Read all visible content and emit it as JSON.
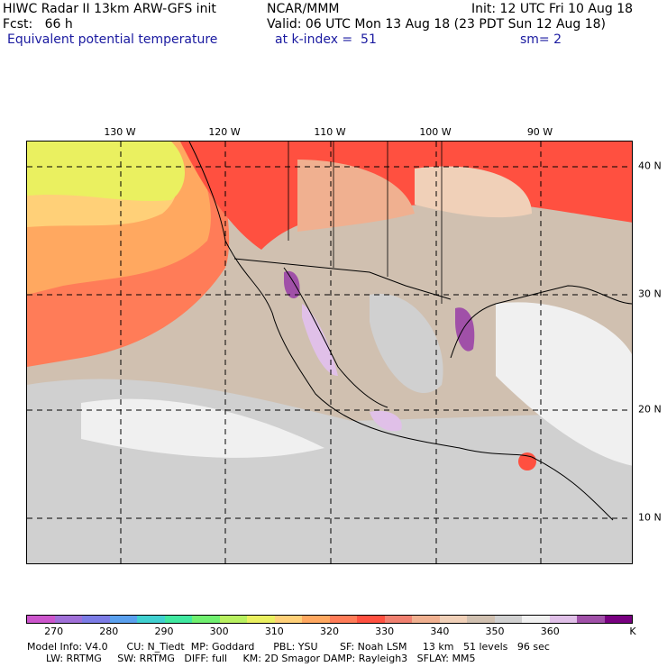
{
  "header": {
    "line1_left": "HIWC Radar II 13km ARW-GFS init",
    "line1_center": "NCAR/MMM",
    "line1_right": "Init: 12 UTC Fri 10 Aug 18",
    "line2_left": "Fcst:   66 h",
    "line2_center": "Valid: 06 UTC Mon 13 Aug 18 (23 PDT Sun 12 Aug 18)",
    "line3_field": "Equivalent potential temperature",
    "line3_level": "at k-index =  51",
    "line3_smooth": "sm= 2"
  },
  "map": {
    "lon_labels": [
      "130 W",
      "120 W",
      "110 W",
      "100 W",
      "90 W"
    ],
    "lat_labels": [
      "40 N",
      "30 N",
      "20 N",
      "10 N"
    ]
  },
  "colorbar": {
    "colors": [
      "#cc55cc",
      "#a070d8",
      "#7c7ce6",
      "#5aa0ee",
      "#40d0d0",
      "#40e8a0",
      "#70f070",
      "#b8f060",
      "#eaf060",
      "#ffd078",
      "#ffa860",
      "#ff7c58",
      "#ff5040",
      "#f08070",
      "#f0b090",
      "#f0d0b8",
      "#d0c0b0",
      "#d0d0d0",
      "#f0f0f0",
      "#e0c0e8",
      "#a050a8",
      "#780080"
    ],
    "labels": [
      "270",
      "280",
      "290",
      "300",
      "310",
      "320",
      "330",
      "340",
      "350",
      "360",
      "K"
    ],
    "highlight": "#78007c"
  },
  "footer": {
    "line1": "Model Info: V4.0      CU: N_Tiedt  MP: Goddard      PBL: YSU       SF: Noah LSM     13 km   51 levels   96 sec",
    "line2": "      LW: RRTMG     SW: RRTMG   DIFF: full     KM: 2D Smagor DAMP: Rayleigh3   SFLAY: MM5"
  }
}
